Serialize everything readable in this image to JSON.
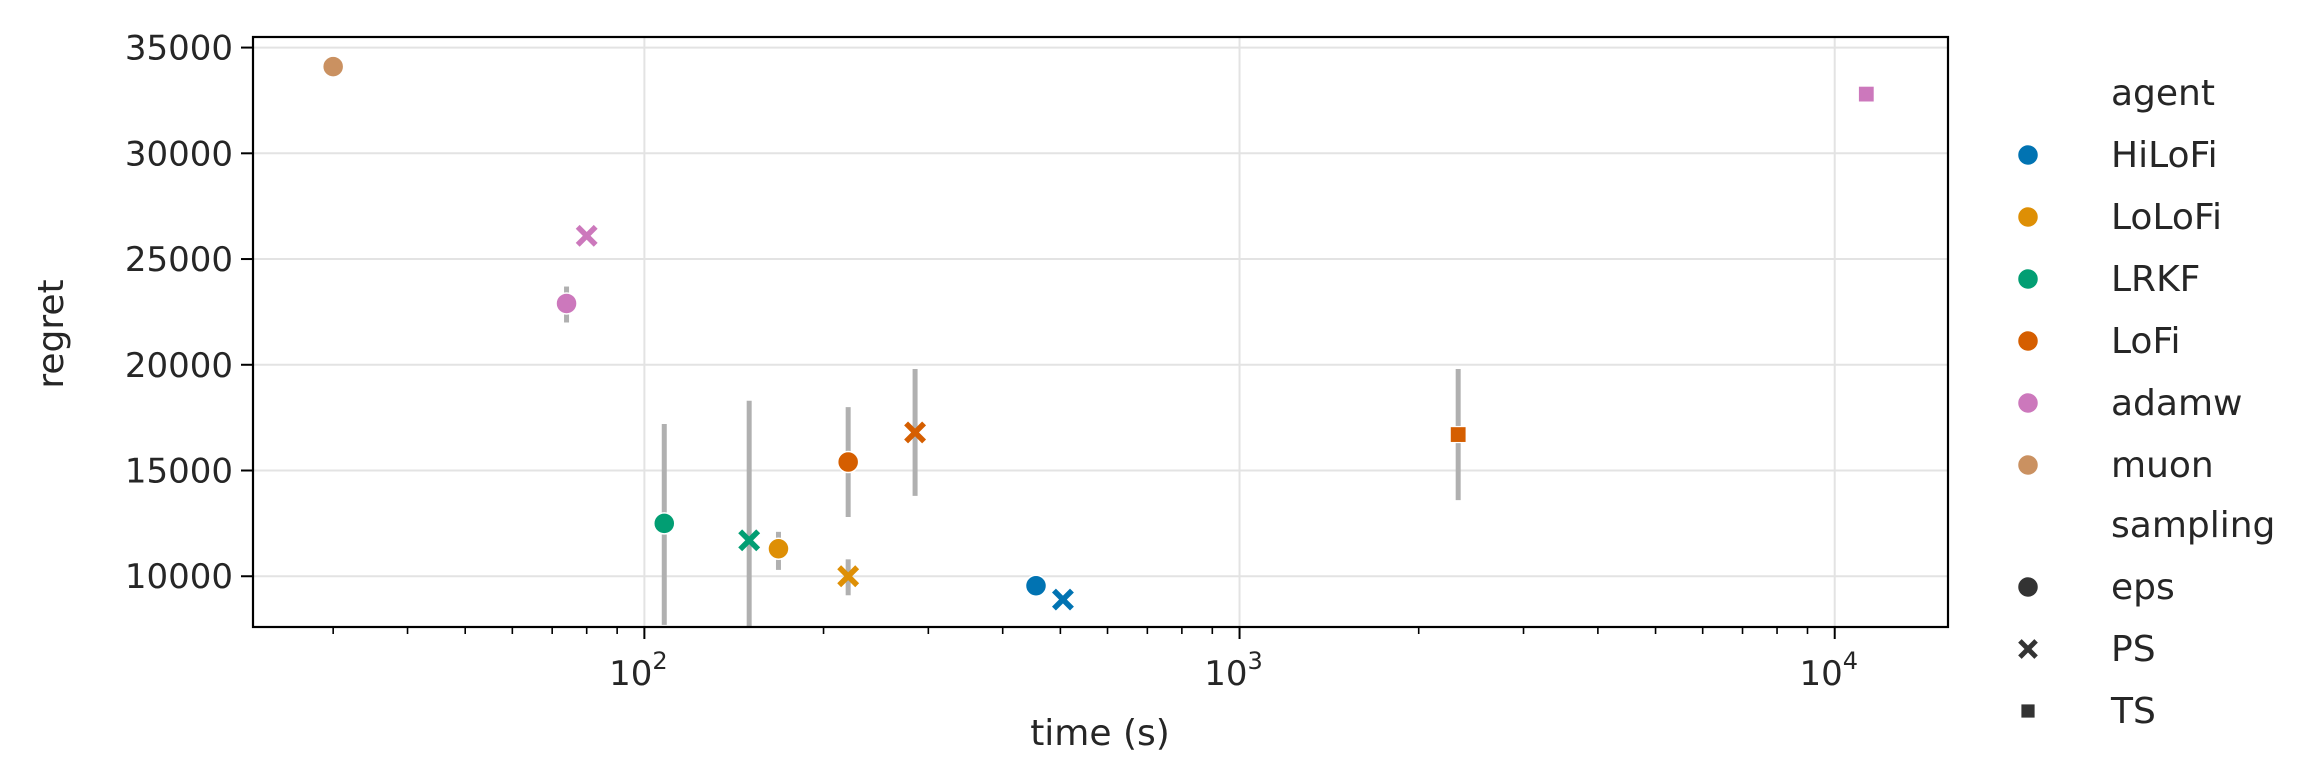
{
  "chart_data": {
    "type": "scatter",
    "xlabel": "time (s)",
    "ylabel": "regret",
    "xscale": "log",
    "xlim": [
      22,
      15500
    ],
    "ylim": [
      7600,
      35500
    ],
    "x_ticks": [
      {
        "value": 100,
        "base": "10",
        "exp": "2"
      },
      {
        "value": 1000,
        "base": "10",
        "exp": "3"
      },
      {
        "value": 10000,
        "base": "10",
        "exp": "4"
      }
    ],
    "y_ticks": [
      10000,
      15000,
      20000,
      25000,
      30000,
      35000
    ],
    "y_tick_labels": [
      "10000",
      "15000",
      "20000",
      "25000",
      "30000",
      "35000"
    ],
    "grid": true,
    "legend_placement": "outside-right",
    "legend": {
      "hue_title": "agent",
      "agents": [
        {
          "name": "HiLoFi",
          "color": "#0173b2"
        },
        {
          "name": "LoLoFi",
          "color": "#de8f05"
        },
        {
          "name": "LRKF",
          "color": "#029e73"
        },
        {
          "name": "LoFi",
          "color": "#d55e00"
        },
        {
          "name": "adamw",
          "color": "#cc78bc"
        },
        {
          "name": "muon",
          "color": "#ca9161"
        }
      ],
      "style_title": "sampling",
      "styles": [
        {
          "name": "eps",
          "marker": "circle"
        },
        {
          "name": "PS",
          "marker": "x"
        },
        {
          "name": "TS",
          "marker": "square"
        }
      ]
    },
    "points": [
      {
        "agent": "muon",
        "sampling": "eps",
        "x": 30,
        "y": 34100,
        "err": [
          34100,
          34100
        ]
      },
      {
        "agent": "adamw",
        "sampling": "PS",
        "x": 80,
        "y": 26100,
        "err": [
          26100,
          26100
        ]
      },
      {
        "agent": "adamw",
        "sampling": "eps",
        "x": 74,
        "y": 22900,
        "err": [
          22000,
          23700
        ]
      },
      {
        "agent": "LRKF",
        "sampling": "eps",
        "x": 108,
        "y": 12500,
        "err": [
          7700,
          17200
        ]
      },
      {
        "agent": "LRKF",
        "sampling": "PS",
        "x": 150,
        "y": 11700,
        "err": [
          7600,
          18300
        ]
      },
      {
        "agent": "LoLoFi",
        "sampling": "eps",
        "x": 168,
        "y": 11300,
        "err": [
          10300,
          12100
        ]
      },
      {
        "agent": "LoLoFi",
        "sampling": "PS",
        "x": 220,
        "y": 10000,
        "err": [
          9100,
          10800
        ]
      },
      {
        "agent": "LoFi",
        "sampling": "eps",
        "x": 220,
        "y": 15400,
        "err": [
          12800,
          18000
        ]
      },
      {
        "agent": "LoFi",
        "sampling": "PS",
        "x": 285,
        "y": 16800,
        "err": [
          13800,
          19800
        ]
      },
      {
        "agent": "HiLoFi",
        "sampling": "eps",
        "x": 455,
        "y": 9550,
        "err": [
          9550,
          9550
        ]
      },
      {
        "agent": "HiLoFi",
        "sampling": "PS",
        "x": 505,
        "y": 8900,
        "err": [
          8900,
          8900
        ]
      },
      {
        "agent": "LoFi",
        "sampling": "TS",
        "x": 2330,
        "y": 16700,
        "err": [
          13600,
          19800
        ]
      },
      {
        "agent": "adamw",
        "sampling": "TS",
        "x": 11300,
        "y": 32800,
        "err": [
          32800,
          32800
        ]
      }
    ]
  }
}
